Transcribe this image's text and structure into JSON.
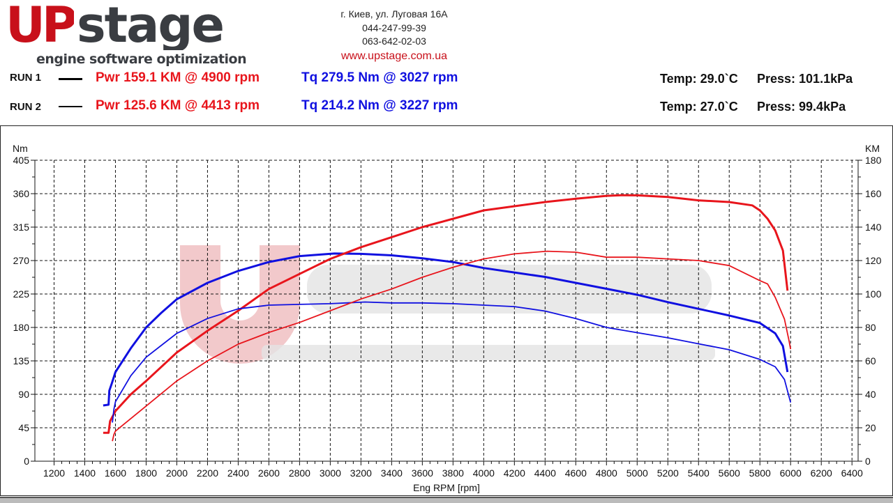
{
  "header": {
    "logo_text": "UPstage",
    "logo_tagline": "engine software optimization",
    "address": "г. Киев, ул. Луговая 16А",
    "phone1": "044-247-99-39",
    "phone2": "063-642-02-03",
    "url": "www.upstage.com.ua"
  },
  "runs": [
    {
      "label": "RUN 1",
      "power": "Pwr  159.1 KM @ 4900 rpm",
      "torque": "Tq 279.5 Nm @ 3027 rpm",
      "temp": "Temp: 29.0`C",
      "press": "Press: 101.1kPa"
    },
    {
      "label": "RUN 2",
      "power": "Pwr  125.6 KM @ 4413 rpm",
      "torque": "Tq 214.2 Nm @ 3227 rpm",
      "temp": "Temp: 27.0`C",
      "press": "Press: 99.4kPa"
    }
  ],
  "chart_data": {
    "type": "line",
    "xlabel": "Eng RPM [rpm]",
    "ylabel_left": "Nm",
    "ylabel_right": "KM",
    "xlim": [
      1075,
      6440
    ],
    "ylim_left": [
      0,
      405
    ],
    "ylim_right": [
      0,
      180
    ],
    "xticks": [
      1200,
      1400,
      1600,
      1800,
      2000,
      2200,
      2400,
      2600,
      2800,
      3000,
      3200,
      3400,
      3600,
      3800,
      4000,
      4200,
      4400,
      4600,
      4800,
      5000,
      5200,
      5400,
      5600,
      5800,
      6000,
      6200,
      6400
    ],
    "yticks_left": [
      0,
      45,
      90,
      135,
      180,
      225,
      270,
      315,
      360,
      405
    ],
    "yticks_right": [
      0,
      20,
      40,
      60,
      80,
      100,
      120,
      140,
      160,
      180
    ],
    "grid": true,
    "colors": {
      "power": "#e8151c",
      "torque": "#1010e0"
    },
    "series": [
      {
        "run": "RUN 1",
        "quantity": "torque",
        "axis": "left",
        "width": "thick",
        "x": [
          1520,
          1555,
          1560,
          1575,
          1600,
          1700,
          1800,
          1900,
          2000,
          2200,
          2400,
          2600,
          2800,
          3027,
          3200,
          3400,
          3600,
          3800,
          4000,
          4200,
          4400,
          4600,
          4800,
          5000,
          5200,
          5400,
          5600,
          5800,
          5900,
          5950,
          5980
        ],
        "y": [
          75,
          76,
          95,
          104,
          120,
          152,
          180,
          200,
          218,
          240,
          256,
          268,
          276,
          279.5,
          279,
          277,
          273,
          268,
          260,
          254,
          248,
          240,
          232,
          224,
          214,
          205,
          196,
          186,
          172,
          155,
          120
        ]
      },
      {
        "run": "RUN 1",
        "quantity": "power",
        "axis": "right",
        "width": "thick",
        "x": [
          1520,
          1555,
          1565,
          1600,
          1700,
          1800,
          2000,
          2200,
          2400,
          2600,
          2800,
          3000,
          3200,
          3400,
          3600,
          3800,
          4000,
          4200,
          4400,
          4600,
          4800,
          4900,
          5000,
          5200,
          5400,
          5600,
          5750,
          5800,
          5850,
          5900,
          5950,
          5980
        ],
        "y": [
          17,
          17,
          24,
          30,
          40,
          48,
          65,
          78,
          90,
          103,
          112,
          121,
          128,
          134,
          140,
          145,
          150,
          152.5,
          155,
          157,
          158.7,
          159.1,
          159,
          158,
          156,
          155,
          153,
          150,
          145,
          138,
          126,
          102
        ]
      },
      {
        "run": "RUN 2",
        "quantity": "torque",
        "axis": "left",
        "width": "thin",
        "x": [
          1580,
          1590,
          1600,
          1700,
          1800,
          2000,
          2200,
          2400,
          2600,
          2800,
          3000,
          3227,
          3400,
          3600,
          3800,
          4000,
          4200,
          4400,
          4600,
          4800,
          5000,
          5200,
          5400,
          5600,
          5800,
          5900,
          5960,
          6000
        ],
        "y": [
          52,
          70,
          80,
          115,
          140,
          172,
          192,
          205,
          210,
          211,
          212,
          214.2,
          213,
          213,
          212,
          210,
          208,
          202,
          192,
          180,
          173,
          166,
          158,
          150,
          137,
          127,
          110,
          79
        ]
      },
      {
        "run": "RUN 2",
        "quantity": "power",
        "axis": "right",
        "width": "thin",
        "x": [
          1580,
          1590,
          1600,
          1800,
          2000,
          2200,
          2400,
          2600,
          2800,
          3000,
          3200,
          3400,
          3600,
          3800,
          4000,
          4200,
          4413,
          4600,
          4800,
          5000,
          5200,
          5400,
          5600,
          5800,
          5850,
          5900,
          5960,
          5990,
          6000
        ],
        "y": [
          12,
          16,
          18,
          33,
          48,
          60,
          70,
          77,
          83,
          90,
          97,
          103,
          110,
          116,
          121,
          124,
          125.6,
          125,
          122,
          122,
          121,
          120,
          117,
          108,
          106,
          98,
          85,
          72,
          67
        ]
      }
    ]
  }
}
